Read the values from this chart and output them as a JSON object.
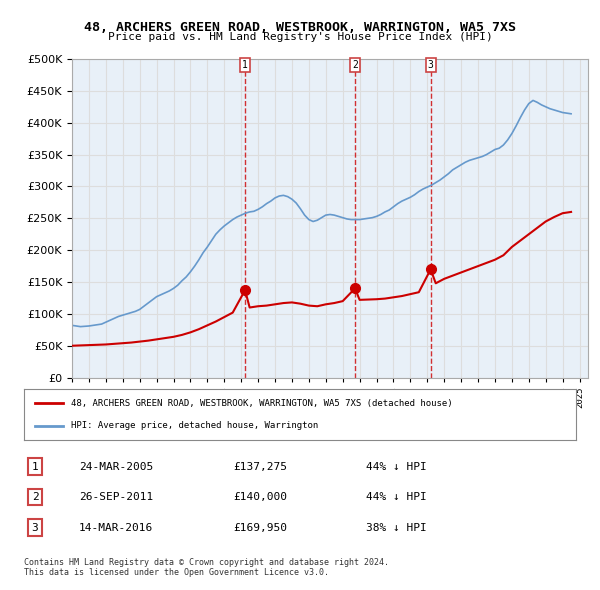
{
  "title": "48, ARCHERS GREEN ROAD, WESTBROOK, WARRINGTON, WA5 7XS",
  "subtitle": "Price paid vs. HM Land Registry's House Price Index (HPI)",
  "ylabel_ticks": [
    "£0",
    "£50K",
    "£100K",
    "£150K",
    "£200K",
    "£250K",
    "£300K",
    "£350K",
    "£400K",
    "£450K",
    "£500K"
  ],
  "ytick_values": [
    0,
    50000,
    100000,
    150000,
    200000,
    250000,
    300000,
    350000,
    400000,
    450000,
    500000
  ],
  "xlim_start": 1995.0,
  "xlim_end": 2025.5,
  "ylim_min": 0,
  "ylim_max": 500000,
  "transaction_dates": [
    2005.23,
    2011.73,
    2016.2
  ],
  "transaction_prices": [
    137275,
    140000,
    169950
  ],
  "transaction_labels": [
    "1",
    "2",
    "3"
  ],
  "transaction_info": [
    {
      "label": "1",
      "date": "24-MAR-2005",
      "price": "£137,275",
      "pct": "44% ↓ HPI"
    },
    {
      "label": "2",
      "date": "26-SEP-2011",
      "price": "£140,000",
      "pct": "44% ↓ HPI"
    },
    {
      "label": "3",
      "date": "14-MAR-2016",
      "price": "£169,950",
      "pct": "38% ↓ HPI"
    }
  ],
  "red_line_color": "#cc0000",
  "blue_line_color": "#6699cc",
  "transaction_marker_color": "#cc0000",
  "vline_color": "#cc0000",
  "background_color": "#ffffff",
  "grid_color": "#dddddd",
  "legend_label_red": "48, ARCHERS GREEN ROAD, WESTBROOK, WARRINGTON, WA5 7XS (detached house)",
  "legend_label_blue": "HPI: Average price, detached house, Warrington",
  "footnote": "Contains HM Land Registry data © Crown copyright and database right 2024.\nThis data is licensed under the Open Government Licence v3.0.",
  "hpi_x": [
    1995.0,
    1995.25,
    1995.5,
    1995.75,
    1996.0,
    1996.25,
    1996.5,
    1996.75,
    1997.0,
    1997.25,
    1997.5,
    1997.75,
    1998.0,
    1998.25,
    1998.5,
    1998.75,
    1999.0,
    1999.25,
    1999.5,
    1999.75,
    2000.0,
    2000.25,
    2000.5,
    2000.75,
    2001.0,
    2001.25,
    2001.5,
    2001.75,
    2002.0,
    2002.25,
    2002.5,
    2002.75,
    2003.0,
    2003.25,
    2003.5,
    2003.75,
    2004.0,
    2004.25,
    2004.5,
    2004.75,
    2005.0,
    2005.25,
    2005.5,
    2005.75,
    2006.0,
    2006.25,
    2006.5,
    2006.75,
    2007.0,
    2007.25,
    2007.5,
    2007.75,
    2008.0,
    2008.25,
    2008.5,
    2008.75,
    2009.0,
    2009.25,
    2009.5,
    2009.75,
    2010.0,
    2010.25,
    2010.5,
    2010.75,
    2011.0,
    2011.25,
    2011.5,
    2011.75,
    2012.0,
    2012.25,
    2012.5,
    2012.75,
    2013.0,
    2013.25,
    2013.5,
    2013.75,
    2014.0,
    2014.25,
    2014.5,
    2014.75,
    2015.0,
    2015.25,
    2015.5,
    2015.75,
    2016.0,
    2016.25,
    2016.5,
    2016.75,
    2017.0,
    2017.25,
    2017.5,
    2017.75,
    2018.0,
    2018.25,
    2018.5,
    2018.75,
    2019.0,
    2019.25,
    2019.5,
    2019.75,
    2020.0,
    2020.25,
    2020.5,
    2020.75,
    2021.0,
    2021.25,
    2021.5,
    2021.75,
    2022.0,
    2022.25,
    2022.5,
    2022.75,
    2023.0,
    2023.25,
    2023.5,
    2023.75,
    2024.0,
    2024.25,
    2024.5
  ],
  "hpi_y": [
    82000,
    81000,
    80000,
    80500,
    81000,
    82000,
    83000,
    84000,
    87000,
    90000,
    93000,
    96000,
    98000,
    100000,
    102000,
    104000,
    107000,
    112000,
    117000,
    122000,
    127000,
    130000,
    133000,
    136000,
    140000,
    145000,
    152000,
    158000,
    166000,
    175000,
    185000,
    196000,
    205000,
    215000,
    225000,
    232000,
    238000,
    243000,
    248000,
    252000,
    255000,
    258000,
    260000,
    261000,
    264000,
    268000,
    273000,
    277000,
    282000,
    285000,
    286000,
    284000,
    280000,
    274000,
    265000,
    255000,
    248000,
    245000,
    247000,
    251000,
    255000,
    256000,
    255000,
    253000,
    251000,
    249000,
    248000,
    248000,
    248000,
    249000,
    250000,
    251000,
    253000,
    256000,
    260000,
    263000,
    268000,
    273000,
    277000,
    280000,
    283000,
    287000,
    292000,
    296000,
    299000,
    302000,
    306000,
    310000,
    315000,
    320000,
    326000,
    330000,
    334000,
    338000,
    341000,
    343000,
    345000,
    347000,
    350000,
    354000,
    358000,
    360000,
    365000,
    373000,
    383000,
    395000,
    408000,
    420000,
    430000,
    435000,
    432000,
    428000,
    425000,
    422000,
    420000,
    418000,
    416000,
    415000,
    414000
  ],
  "red_x": [
    1995.0,
    1995.5,
    1996.0,
    1996.5,
    1997.0,
    1997.5,
    1998.0,
    1998.5,
    1999.0,
    1999.5,
    2000.0,
    2000.5,
    2001.0,
    2001.5,
    2002.0,
    2002.5,
    2003.0,
    2003.5,
    2004.0,
    2004.5,
    2005.23,
    2005.5,
    2006.0,
    2006.5,
    2007.0,
    2007.5,
    2008.0,
    2008.5,
    2009.0,
    2009.5,
    2010.0,
    2010.5,
    2011.0,
    2011.73,
    2012.0,
    2012.5,
    2013.0,
    2013.5,
    2014.0,
    2014.5,
    2015.0,
    2015.5,
    2016.2,
    2016.5,
    2017.0,
    2017.5,
    2018.0,
    2018.5,
    2019.0,
    2019.5,
    2020.0,
    2020.5,
    2021.0,
    2021.5,
    2022.0,
    2022.5,
    2023.0,
    2023.5,
    2024.0,
    2024.5
  ],
  "red_y": [
    50000,
    50500,
    51000,
    51500,
    52000,
    53000,
    54000,
    55000,
    56500,
    58000,
    60000,
    62000,
    64000,
    67000,
    71000,
    76000,
    82000,
    88000,
    95000,
    102000,
    137275,
    110000,
    112000,
    113000,
    115000,
    117000,
    118000,
    116000,
    113000,
    112000,
    115000,
    117000,
    120000,
    140000,
    122000,
    122500,
    123000,
    124000,
    126000,
    128000,
    131000,
    134000,
    169950,
    148000,
    155000,
    160000,
    165000,
    170000,
    175000,
    180000,
    185000,
    192000,
    205000,
    215000,
    225000,
    235000,
    245000,
    252000,
    258000,
    260000
  ]
}
